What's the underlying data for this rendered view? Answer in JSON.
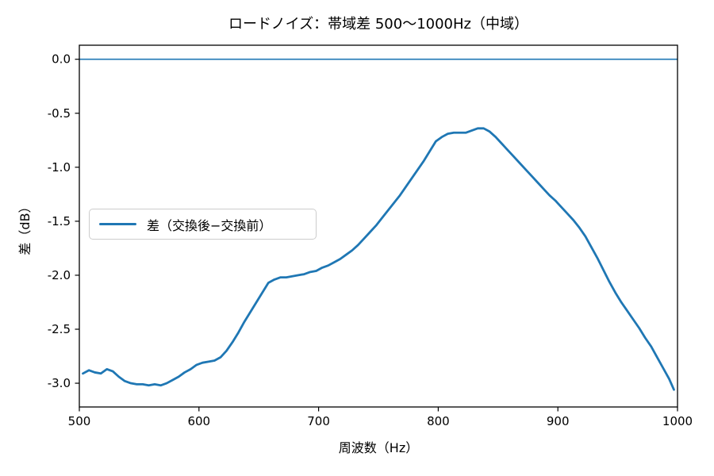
{
  "figure": {
    "background": "#ffffff",
    "accent_color": "#1f77b4",
    "spine_color": "#000000"
  },
  "chart_data": {
    "type": "line",
    "title": "ロードノイズ：帯域差 500〜1000Hz（中域）",
    "xlabel": "周波数（Hz）",
    "ylabel": "差（dB）",
    "xlim": [
      500,
      1000
    ],
    "ylim": [
      -3.22,
      0.13
    ],
    "grid": false,
    "legend_position": "center-left",
    "x_ticks": [
      {
        "value": 500,
        "label": "500"
      },
      {
        "value": 600,
        "label": "600"
      },
      {
        "value": 700,
        "label": "700"
      },
      {
        "value": 800,
        "label": "800"
      },
      {
        "value": 900,
        "label": "900"
      },
      {
        "value": 1000,
        "label": "1000"
      }
    ],
    "y_ticks": [
      {
        "value": 0.0,
        "label": "0.0"
      },
      {
        "value": -0.5,
        "label": "-0.5"
      },
      {
        "value": -1.0,
        "label": "-1.0"
      },
      {
        "value": -1.5,
        "label": "-1.5"
      },
      {
        "value": -2.0,
        "label": "-2.0"
      },
      {
        "value": -2.5,
        "label": "-2.5"
      },
      {
        "value": -3.0,
        "label": "-3.0"
      }
    ],
    "reference_line": {
      "y": 0.0,
      "color": "#1f77b4",
      "width": 1.6
    },
    "series": [
      {
        "name": "差（交換後−交換前）",
        "color": "#1f77b4",
        "width": 2.8,
        "points": [
          [
            503,
            -2.91
          ],
          [
            508,
            -2.88
          ],
          [
            513,
            -2.9
          ],
          [
            518,
            -2.91
          ],
          [
            523,
            -2.87
          ],
          [
            528,
            -2.89
          ],
          [
            533,
            -2.94
          ],
          [
            538,
            -2.98
          ],
          [
            543,
            -3.0
          ],
          [
            548,
            -3.01
          ],
          [
            553,
            -3.01
          ],
          [
            558,
            -3.02
          ],
          [
            563,
            -3.01
          ],
          [
            568,
            -3.02
          ],
          [
            573,
            -3.0
          ],
          [
            578,
            -2.97
          ],
          [
            583,
            -2.94
          ],
          [
            588,
            -2.9
          ],
          [
            593,
            -2.87
          ],
          [
            598,
            -2.83
          ],
          [
            603,
            -2.81
          ],
          [
            608,
            -2.8
          ],
          [
            613,
            -2.79
          ],
          [
            618,
            -2.76
          ],
          [
            623,
            -2.7
          ],
          [
            628,
            -2.62
          ],
          [
            633,
            -2.53
          ],
          [
            638,
            -2.43
          ],
          [
            643,
            -2.34
          ],
          [
            648,
            -2.25
          ],
          [
            653,
            -2.16
          ],
          [
            658,
            -2.07
          ],
          [
            663,
            -2.04
          ],
          [
            668,
            -2.02
          ],
          [
            673,
            -2.02
          ],
          [
            678,
            -2.01
          ],
          [
            683,
            -2.0
          ],
          [
            688,
            -1.99
          ],
          [
            693,
            -1.97
          ],
          [
            698,
            -1.96
          ],
          [
            703,
            -1.93
          ],
          [
            708,
            -1.91
          ],
          [
            713,
            -1.88
          ],
          [
            718,
            -1.85
          ],
          [
            723,
            -1.81
          ],
          [
            728,
            -1.77
          ],
          [
            733,
            -1.72
          ],
          [
            738,
            -1.66
          ],
          [
            743,
            -1.6
          ],
          [
            748,
            -1.54
          ],
          [
            753,
            -1.47
          ],
          [
            758,
            -1.4
          ],
          [
            763,
            -1.33
          ],
          [
            768,
            -1.26
          ],
          [
            773,
            -1.18
          ],
          [
            778,
            -1.1
          ],
          [
            783,
            -1.02
          ],
          [
            788,
            -0.94
          ],
          [
            793,
            -0.85
          ],
          [
            798,
            -0.76
          ],
          [
            803,
            -0.72
          ],
          [
            808,
            -0.69
          ],
          [
            813,
            -0.68
          ],
          [
            818,
            -0.68
          ],
          [
            823,
            -0.68
          ],
          [
            828,
            -0.66
          ],
          [
            833,
            -0.64
          ],
          [
            838,
            -0.64
          ],
          [
            843,
            -0.67
          ],
          [
            848,
            -0.72
          ],
          [
            853,
            -0.78
          ],
          [
            858,
            -0.84
          ],
          [
            863,
            -0.9
          ],
          [
            868,
            -0.96
          ],
          [
            873,
            -1.02
          ],
          [
            878,
            -1.08
          ],
          [
            883,
            -1.14
          ],
          [
            888,
            -1.2
          ],
          [
            893,
            -1.26
          ],
          [
            898,
            -1.31
          ],
          [
            903,
            -1.37
          ],
          [
            908,
            -1.43
          ],
          [
            913,
            -1.49
          ],
          [
            918,
            -1.56
          ],
          [
            923,
            -1.64
          ],
          [
            928,
            -1.74
          ],
          [
            933,
            -1.84
          ],
          [
            938,
            -1.95
          ],
          [
            943,
            -2.06
          ],
          [
            948,
            -2.16
          ],
          [
            953,
            -2.25
          ],
          [
            958,
            -2.33
          ],
          [
            963,
            -2.41
          ],
          [
            968,
            -2.49
          ],
          [
            973,
            -2.58
          ],
          [
            978,
            -2.66
          ],
          [
            983,
            -2.76
          ],
          [
            988,
            -2.86
          ],
          [
            993,
            -2.96
          ],
          [
            997,
            -3.06
          ]
        ]
      }
    ]
  }
}
